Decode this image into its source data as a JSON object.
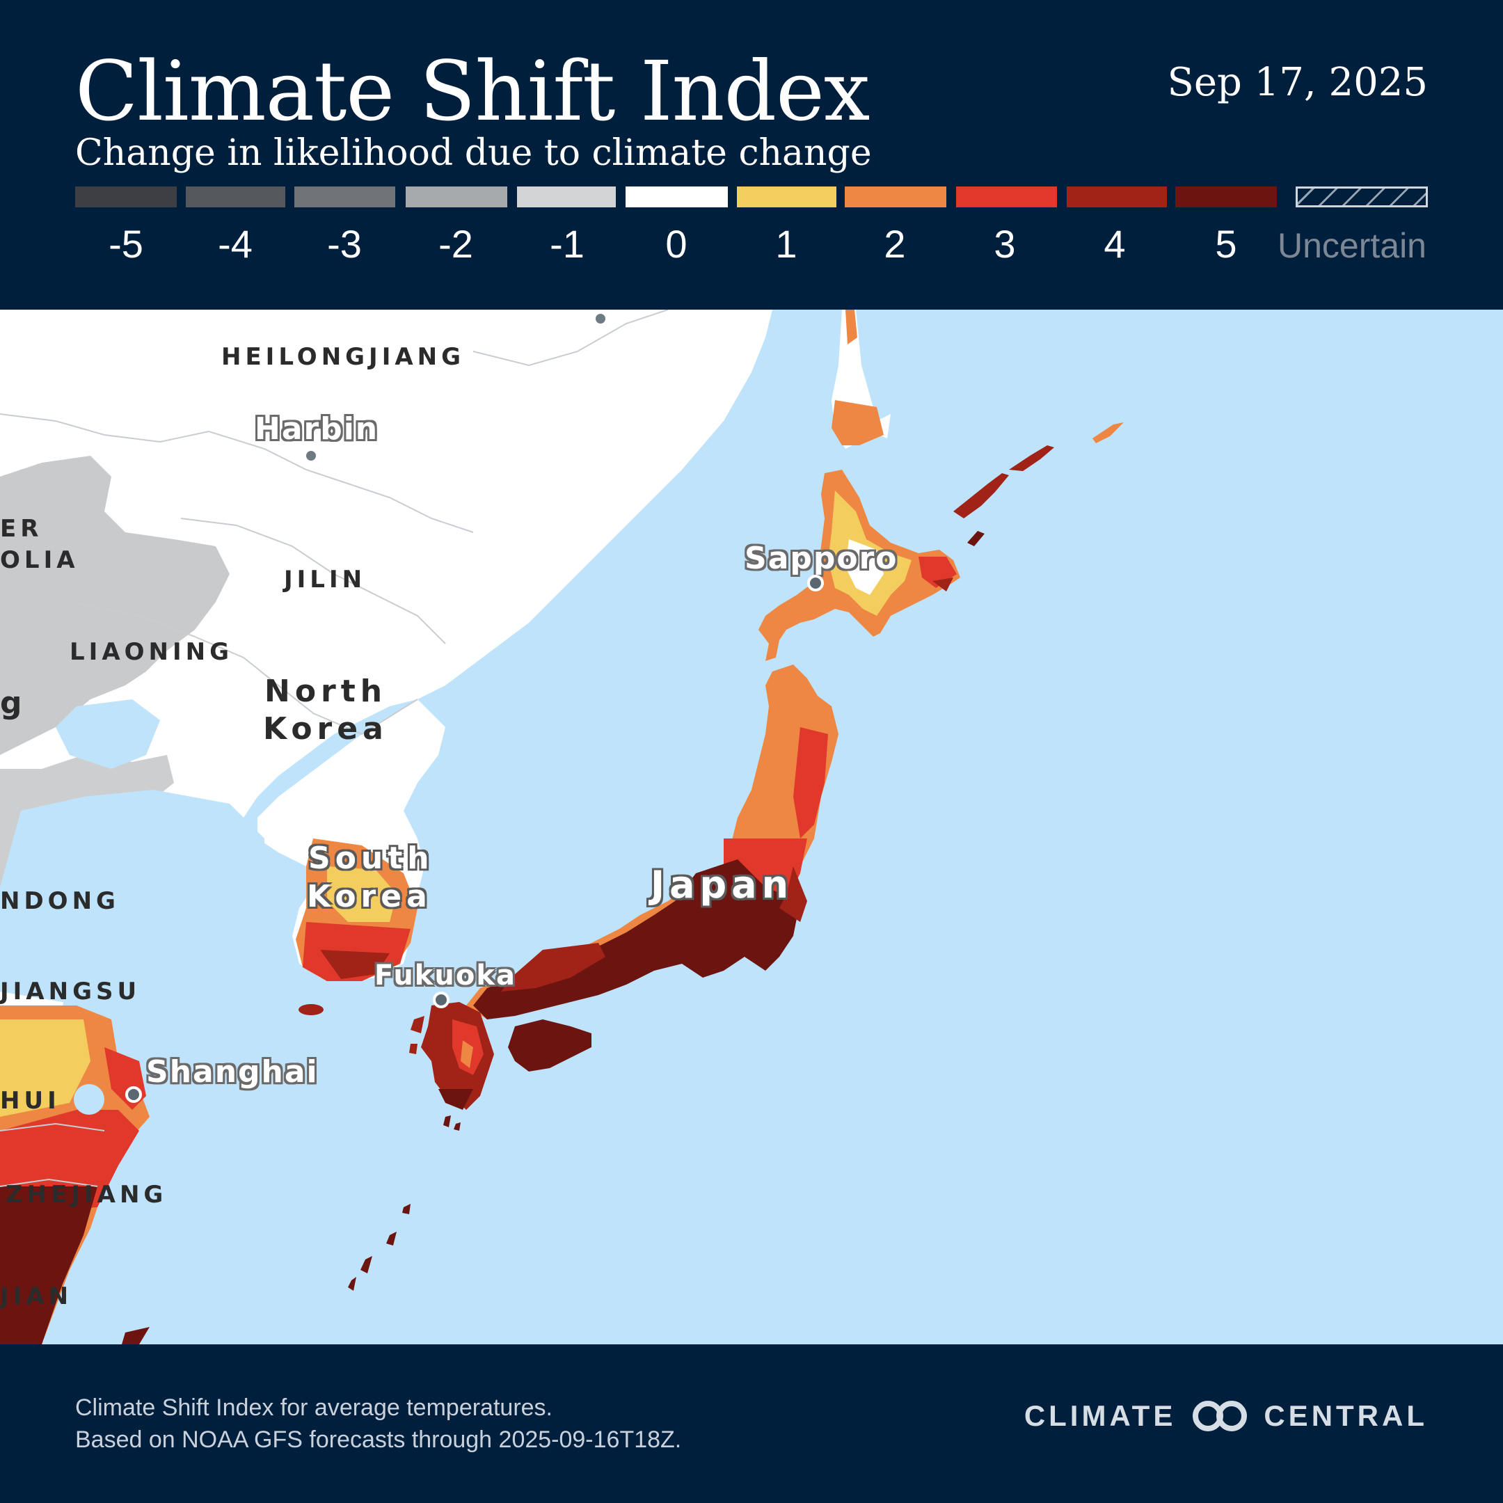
{
  "header": {
    "title": "Climate Shift Index",
    "subtitle": "Change in likelihood due to climate change",
    "date": "Sep 17, 2025"
  },
  "legend": {
    "items": [
      {
        "label": "-5",
        "color": "#3d3f44"
      },
      {
        "label": "-4",
        "color": "#55585c"
      },
      {
        "label": "-3",
        "color": "#6f7276"
      },
      {
        "label": "-2",
        "color": "#a7aaad"
      },
      {
        "label": "-1",
        "color": "#d3d4d6"
      },
      {
        "label": "0",
        "color": "#ffffff"
      },
      {
        "label": "1",
        "color": "#f3ce5e"
      },
      {
        "label": "2",
        "color": "#ee8743"
      },
      {
        "label": "3",
        "color": "#e0392b"
      },
      {
        "label": "4",
        "color": "#a12217"
      },
      {
        "label": "5",
        "color": "#6c1410"
      }
    ],
    "uncertain_label": "Uncertain"
  },
  "map": {
    "provinces": [
      "HEILONGJIANG",
      "JILIN",
      "LIAONING",
      "JIANGSU",
      "ZHEJIANG"
    ],
    "clipped_labels": [
      "ER",
      "OLIA",
      "g",
      "NDONG",
      "HUI",
      "JIAN"
    ],
    "countries": [
      "North",
      "Korea",
      "South",
      "Korea",
      "Japan"
    ],
    "cities": [
      "Harbin",
      "Sapporo",
      "Fukuoka",
      "Shanghai"
    ],
    "colors": {
      "sea": "#bfe3fa",
      "land_neutral": "#ffffff",
      "land_gray": "#c9cacc"
    }
  },
  "footer": {
    "line1": "Climate Shift Index for average temperatures.",
    "line2": "Based on NOAA GFS forecasts through 2025-09-16T18Z.",
    "brand_left": "CLIMATE",
    "brand_right": "CENTRAL",
    "brand_logo_icon": "interlocking-circles-logo"
  }
}
